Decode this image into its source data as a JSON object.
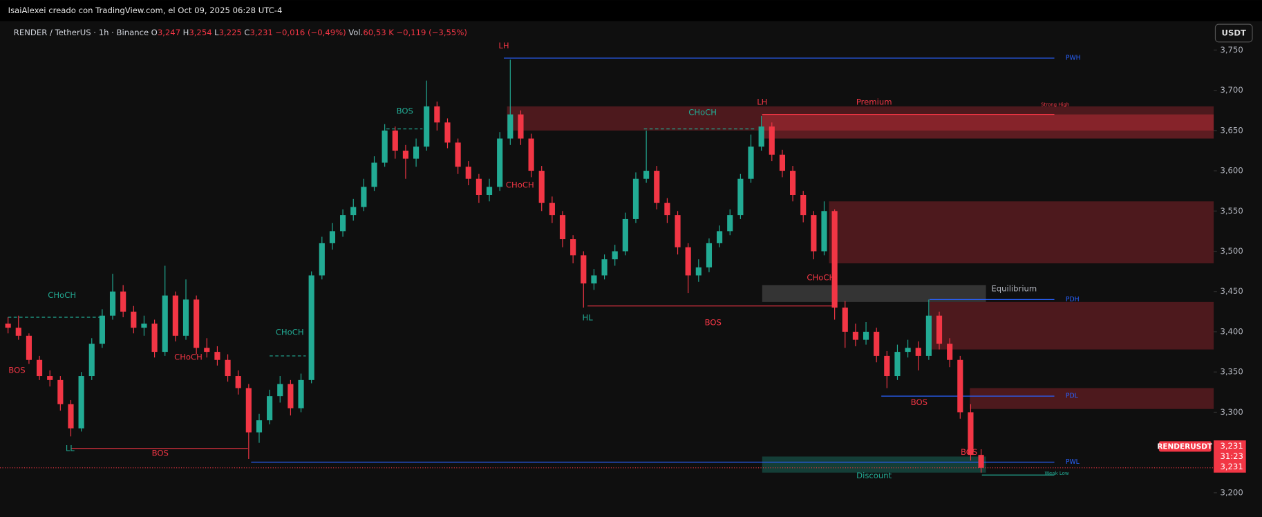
{
  "header": {
    "attribution": "IsaiAlexei creado con TradingView.com, el Oct 09, 2025 06:28 UTC-4",
    "symbol": "RENDER / TetherUS · 1h · Binance",
    "ohlc": [
      {
        "key": "O",
        "value": "3,247"
      },
      {
        "key": "H",
        "value": "3,254"
      },
      {
        "key": "L",
        "value": "3,225"
      },
      {
        "key": "C",
        "value": "3,231"
      }
    ],
    "change": "−0,016 (−0,49%)",
    "volume_key": "Vol.",
    "volume": "60,53 K",
    "volume_change": "−0,119 (−3,55%)",
    "currency_button": "USDT"
  },
  "chart_data": {
    "type": "candlestick",
    "up_color": "#22ab94",
    "down_color": "#f23645",
    "open": [
      3410,
      3405,
      3395,
      3365,
      3345,
      3340,
      3310,
      3280,
      3345,
      3385,
      3420,
      3450,
      3425,
      3405,
      3410,
      3375,
      3445,
      3395,
      3440,
      3380,
      3375,
      3365,
      3345,
      3330,
      3275,
      3290,
      3320,
      3335,
      3305,
      3340,
      3470,
      3510,
      3525,
      3545,
      3555,
      3580,
      3610,
      3650,
      3625,
      3615,
      3630,
      3680,
      3660,
      3635,
      3605,
      3590,
      3570,
      3580,
      3640,
      3670,
      3640,
      3600,
      3560,
      3545,
      3515,
      3495,
      3460,
      3470,
      3490,
      3500,
      3540,
      3590,
      3600,
      3560,
      3545,
      3505,
      3470,
      3480,
      3510,
      3525,
      3545,
      3590,
      3630,
      3655,
      3620,
      3600,
      3570,
      3545,
      3500,
      3550,
      3430,
      3400,
      3390,
      3400,
      3370,
      3345,
      3375,
      3380,
      3370,
      3420,
      3385,
      3365,
      3300,
      3247
    ],
    "high": [
      3418,
      3420,
      3398,
      3370,
      3352,
      3345,
      3315,
      3350,
      3392,
      3428,
      3472,
      3458,
      3432,
      3420,
      3415,
      3482,
      3450,
      3465,
      3445,
      3392,
      3382,
      3372,
      3352,
      3335,
      3298,
      3328,
      3345,
      3340,
      3348,
      3475,
      3518,
      3535,
      3552,
      3565,
      3590,
      3618,
      3658,
      3655,
      3632,
      3640,
      3712,
      3686,
      3665,
      3640,
      3612,
      3596,
      3590,
      3648,
      3738,
      3675,
      3646,
      3606,
      3568,
      3550,
      3520,
      3500,
      3478,
      3496,
      3508,
      3548,
      3598,
      3650,
      3606,
      3566,
      3550,
      3510,
      3490,
      3516,
      3532,
      3552,
      3596,
      3645,
      3668,
      3660,
      3626,
      3606,
      3575,
      3550,
      3562,
      3552,
      3438,
      3410,
      3412,
      3405,
      3376,
      3384,
      3390,
      3388,
      3440,
      3425,
      3392,
      3370,
      3310,
      3254
    ],
    "low": [
      3398,
      3390,
      3360,
      3340,
      3332,
      3302,
      3270,
      3276,
      3340,
      3380,
      3415,
      3418,
      3398,
      3395,
      3368,
      3370,
      3388,
      3390,
      3372,
      3368,
      3358,
      3338,
      3322,
      3242,
      3262,
      3285,
      3312,
      3296,
      3300,
      3336,
      3465,
      3502,
      3518,
      3538,
      3550,
      3575,
      3605,
      3615,
      3590,
      3605,
      3625,
      3650,
      3628,
      3596,
      3582,
      3560,
      3562,
      3575,
      3632,
      3632,
      3592,
      3550,
      3535,
      3505,
      3485,
      3430,
      3452,
      3465,
      3482,
      3495,
      3535,
      3585,
      3552,
      3535,
      3496,
      3448,
      3462,
      3474,
      3505,
      3520,
      3540,
      3585,
      3625,
      3612,
      3592,
      3562,
      3536,
      3490,
      3495,
      3415,
      3380,
      3382,
      3384,
      3362,
      3330,
      3340,
      3368,
      3352,
      3365,
      3378,
      3356,
      3292,
      3240,
      3225
    ],
    "close": [
      3405,
      3395,
      3365,
      3345,
      3340,
      3310,
      3280,
      3345,
      3385,
      3420,
      3450,
      3425,
      3405,
      3410,
      3375,
      3445,
      3395,
      3440,
      3380,
      3375,
      3365,
      3345,
      3330,
      3275,
      3290,
      3320,
      3335,
      3305,
      3340,
      3470,
      3510,
      3525,
      3545,
      3555,
      3580,
      3610,
      3650,
      3625,
      3615,
      3630,
      3680,
      3660,
      3635,
      3605,
      3590,
      3570,
      3580,
      3640,
      3670,
      3640,
      3600,
      3560,
      3545,
      3515,
      3495,
      3460,
      3470,
      3490,
      3500,
      3540,
      3590,
      3600,
      3560,
      3545,
      3505,
      3470,
      3480,
      3510,
      3525,
      3545,
      3590,
      3630,
      3655,
      3620,
      3600,
      3570,
      3545,
      3500,
      3550,
      3430,
      3400,
      3390,
      3400,
      3370,
      3345,
      3375,
      3380,
      3370,
      3420,
      3385,
      3365,
      3300,
      3247,
      3231
    ],
    "ylim": [
      3170,
      3784
    ],
    "yticks": [
      {
        "value": 3200,
        "label": "3,200"
      },
      {
        "value": 3250,
        "label": "3,250"
      },
      {
        "value": 3300,
        "label": "3,300"
      },
      {
        "value": 3350,
        "label": "3,350"
      },
      {
        "value": 3400,
        "label": "3,400"
      },
      {
        "value": 3450,
        "label": "3,450"
      },
      {
        "value": 3500,
        "label": "3,500"
      },
      {
        "value": 3550,
        "label": "3,550"
      },
      {
        "value": 3600,
        "label": "3,600"
      },
      {
        "value": 3650,
        "label": "3,650"
      },
      {
        "value": 3700,
        "label": "3,700"
      },
      {
        "value": 3750,
        "label": "3,750"
      }
    ],
    "zones": [
      [
        3650,
        3680
      ],
      [
        3640,
        3670
      ],
      [
        3485,
        3562
      ],
      [
        3437,
        3458
      ],
      [
        3378,
        3437
      ],
      [
        3304,
        3330
      ],
      [
        3225,
        3245
      ]
    ],
    "levels": [
      {
        "label": "PWH",
        "value": 3740
      },
      {
        "label": "PDH",
        "value": 3440
      },
      {
        "label": "PDL",
        "value": 3320
      },
      {
        "label": "PWL",
        "value": 3238
      }
    ],
    "structure_levels": [
      3432,
      3255,
      3652,
      3418,
      3370,
      3652,
      3670,
      3222
    ],
    "annotations": [
      "LH",
      "BOS",
      "CHoCH",
      "LH",
      "Premium",
      "Strong High",
      "CHoCH",
      "CHoCH",
      "CHoCH",
      "CHoCH",
      "BOS",
      "CHoCH",
      "Equilibrium",
      "HL",
      "BOS",
      "BOS",
      "LL",
      "BOS",
      "BOS",
      "Discount",
      "Weak Low"
    ],
    "symbol_tag": "RENDERUSDT",
    "price_tags": [
      {
        "value": 3231,
        "label": "3,231"
      },
      {
        "value": 3231,
        "label": "3,231"
      }
    ],
    "countdown": "31:23"
  }
}
